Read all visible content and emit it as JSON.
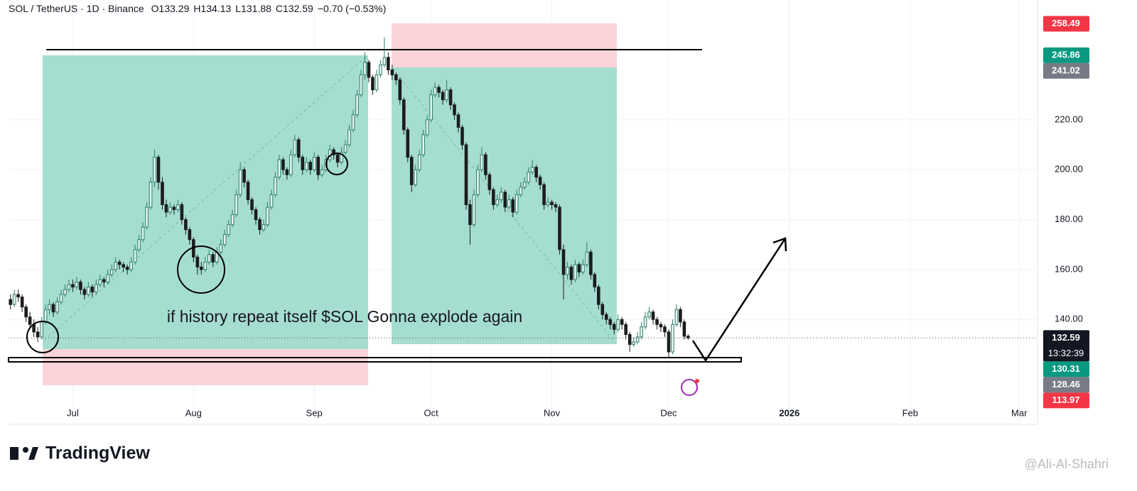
{
  "chart_data": {
    "type": "candlestick",
    "title": "SOL / TetherUS · 1D · Binance",
    "legend_values": [
      "O133.29",
      "H134.13",
      "L131.88",
      "C132.59",
      "−0.70 (−0.53%)"
    ],
    "annotation": "if history repeat itself $SOL Gonna explode again",
    "up_color": "#2e7d6b",
    "down_color": "#1c1c1c",
    "grid": true,
    "xlim": [
      -0.5,
      263.7
    ],
    "xticks": [
      {
        "value": 16,
        "label": "Jul"
      },
      {
        "value": 47,
        "label": "Aug"
      },
      {
        "value": 78,
        "label": "Sep"
      },
      {
        "value": 108,
        "label": "Oct"
      },
      {
        "value": 139,
        "label": "Nov"
      },
      {
        "value": 169,
        "label": "Dec"
      },
      {
        "value": 200,
        "label": "2026"
      },
      {
        "value": 231,
        "label": "Feb"
      },
      {
        "value": 259,
        "label": "Mar"
      }
    ],
    "ylim": [
      98,
      268
    ],
    "yticks": [
      {
        "value": 140,
        "label": "140.00"
      },
      {
        "value": 160,
        "label": "160.00"
      },
      {
        "value": 180,
        "label": "180.00"
      },
      {
        "value": 200,
        "label": "200.00"
      },
      {
        "value": 220,
        "label": "220.00"
      }
    ],
    "price_labels": [
      {
        "value": 258.49,
        "label": "258.49",
        "color": "#f23645"
      },
      {
        "value": 245.86,
        "label": "245.86",
        "color": "#089981"
      },
      {
        "value": 241.02,
        "label": "241.02",
        "color": "#787b86"
      },
      {
        "value": 132.59,
        "label": "132.59",
        "color": "#131722",
        "sub": "13:32:39"
      },
      {
        "value": 130.31,
        "label": "130.31",
        "color": "#089981"
      },
      {
        "value": 128.46,
        "label": "128.46",
        "color": "#787b86"
      },
      {
        "value": 113.97,
        "label": "113.97",
        "color": "#f23645"
      }
    ],
    "candles": [
      [
        148,
        150,
        144,
        146
      ],
      [
        146,
        152,
        145,
        150
      ],
      [
        150,
        152,
        147,
        149
      ],
      [
        149,
        150,
        143,
        145
      ],
      [
        145,
        146,
        139,
        141
      ],
      [
        141,
        143,
        136,
        138
      ],
      [
        138,
        140,
        133,
        135
      ],
      [
        135,
        137,
        131,
        133
      ],
      [
        133,
        141,
        132,
        139
      ],
      [
        139,
        146,
        138,
        144
      ],
      [
        144,
        148,
        142,
        146
      ],
      [
        146,
        147,
        141,
        143
      ],
      [
        143,
        149,
        142,
        147
      ],
      [
        147,
        152,
        146,
        150
      ],
      [
        150,
        154,
        149,
        152
      ],
      [
        152,
        156,
        151,
        154
      ],
      [
        154,
        156,
        151,
        153
      ],
      [
        153,
        157,
        152,
        155
      ],
      [
        155,
        156,
        150,
        152
      ],
      [
        152,
        153,
        148,
        150
      ],
      [
        150,
        155,
        149,
        153
      ],
      [
        153,
        154,
        149,
        151
      ],
      [
        151,
        156,
        150,
        154
      ],
      [
        154,
        158,
        153,
        156
      ],
      [
        156,
        157,
        153,
        155
      ],
      [
        155,
        160,
        154,
        158
      ],
      [
        158,
        162,
        157,
        160
      ],
      [
        160,
        165,
        159,
        163
      ],
      [
        163,
        164,
        160,
        162
      ],
      [
        162,
        163,
        159,
        161
      ],
      [
        161,
        162,
        158,
        160
      ],
      [
        160,
        165,
        159,
        163
      ],
      [
        163,
        170,
        162,
        168
      ],
      [
        168,
        174,
        167,
        172
      ],
      [
        172,
        179,
        171,
        177
      ],
      [
        177,
        187,
        176,
        185
      ],
      [
        185,
        197,
        184,
        195
      ],
      [
        195,
        208,
        193,
        205
      ],
      [
        205,
        206,
        192,
        195
      ],
      [
        195,
        197,
        184,
        186
      ],
      [
        186,
        188,
        181,
        183
      ],
      [
        183,
        187,
        182,
        185
      ],
      [
        185,
        186,
        182,
        184
      ],
      [
        184,
        188,
        183,
        186
      ],
      [
        186,
        187,
        178,
        180
      ],
      [
        180,
        181,
        174,
        176
      ],
      [
        176,
        177,
        170,
        172
      ],
      [
        172,
        173,
        163,
        165
      ],
      [
        165,
        166,
        158,
        161
      ],
      [
        161,
        163,
        158,
        160
      ],
      [
        160,
        165,
        159,
        163
      ],
      [
        163,
        168,
        162,
        166
      ],
      [
        166,
        167,
        161,
        163
      ],
      [
        163,
        169,
        162,
        167
      ],
      [
        167,
        172,
        166,
        170
      ],
      [
        170,
        176,
        169,
        174
      ],
      [
        174,
        180,
        173,
        178
      ],
      [
        178,
        184,
        177,
        182
      ],
      [
        182,
        192,
        181,
        190
      ],
      [
        190,
        203,
        189,
        200
      ],
      [
        200,
        201,
        193,
        195
      ],
      [
        195,
        196,
        186,
        188
      ],
      [
        188,
        189,
        182,
        184
      ],
      [
        184,
        185,
        178,
        180
      ],
      [
        180,
        181,
        174,
        176
      ],
      [
        176,
        180,
        175,
        178
      ],
      [
        178,
        187,
        177,
        185
      ],
      [
        185,
        192,
        184,
        190
      ],
      [
        190,
        199,
        189,
        197
      ],
      [
        197,
        206,
        196,
        204
      ],
      [
        204,
        205,
        198,
        200
      ],
      [
        200,
        201,
        196,
        198
      ],
      [
        198,
        208,
        197,
        206
      ],
      [
        206,
        214,
        205,
        212
      ],
      [
        212,
        213,
        203,
        205
      ],
      [
        205,
        206,
        198,
        200
      ],
      [
        200,
        205,
        199,
        203
      ],
      [
        203,
        204,
        198,
        200
      ],
      [
        200,
        207,
        199,
        205
      ],
      [
        205,
        206,
        196,
        198
      ],
      [
        198,
        202,
        197,
        200
      ],
      [
        200,
        206,
        199,
        204
      ],
      [
        204,
        210,
        203,
        208
      ],
      [
        208,
        209,
        204,
        206
      ],
      [
        206,
        207,
        201,
        203
      ],
      [
        203,
        209,
        202,
        207
      ],
      [
        207,
        212,
        206,
        210
      ],
      [
        210,
        218,
        209,
        216
      ],
      [
        216,
        224,
        215,
        222
      ],
      [
        222,
        232,
        221,
        230
      ],
      [
        230,
        240,
        229,
        238
      ],
      [
        238,
        247,
        236,
        243
      ],
      [
        243,
        244,
        235,
        237
      ],
      [
        237,
        238,
        230,
        232
      ],
      [
        232,
        240,
        231,
        238
      ],
      [
        238,
        244,
        237,
        242
      ],
      [
        242,
        253,
        241,
        245
      ],
      [
        245,
        247,
        238,
        240
      ],
      [
        240,
        242,
        236,
        238
      ],
      [
        238,
        239,
        234,
        236
      ],
      [
        236,
        237,
        226,
        228
      ],
      [
        228,
        229,
        214,
        216
      ],
      [
        216,
        217,
        203,
        205
      ],
      [
        205,
        206,
        191,
        194
      ],
      [
        194,
        202,
        193,
        200
      ],
      [
        200,
        208,
        199,
        206
      ],
      [
        206,
        216,
        205,
        214
      ],
      [
        214,
        222,
        213,
        220
      ],
      [
        220,
        232,
        219,
        230
      ],
      [
        230,
        235,
        229,
        233
      ],
      [
        233,
        234,
        229,
        231
      ],
      [
        231,
        232,
        226,
        228
      ],
      [
        228,
        236,
        227,
        232
      ],
      [
        232,
        233,
        224,
        226
      ],
      [
        226,
        227,
        220,
        222
      ],
      [
        222,
        223,
        215,
        217
      ],
      [
        217,
        218,
        208,
        210
      ],
      [
        210,
        211,
        184,
        186
      ],
      [
        186,
        188,
        170,
        178
      ],
      [
        178,
        192,
        177,
        190
      ],
      [
        190,
        202,
        189,
        200
      ],
      [
        200,
        209,
        199,
        206
      ],
      [
        206,
        207,
        196,
        198
      ],
      [
        198,
        199,
        190,
        192
      ],
      [
        192,
        193,
        184,
        186
      ],
      [
        186,
        190,
        185,
        188
      ],
      [
        188,
        193,
        187,
        191
      ],
      [
        191,
        192,
        183,
        185
      ],
      [
        185,
        190,
        184,
        188
      ],
      [
        188,
        189,
        181,
        183
      ],
      [
        183,
        192,
        182,
        190
      ],
      [
        190,
        195,
        189,
        193
      ],
      [
        193,
        197,
        192,
        195
      ],
      [
        195,
        201,
        194,
        199
      ],
      [
        199,
        204,
        198,
        201
      ],
      [
        201,
        202,
        195,
        197
      ],
      [
        197,
        198,
        192,
        194
      ],
      [
        194,
        195,
        184,
        186
      ],
      [
        186,
        189,
        185,
        187
      ],
      [
        187,
        188,
        184,
        186
      ],
      [
        186,
        187,
        183,
        185
      ],
      [
        185,
        186,
        166,
        168
      ],
      [
        168,
        170,
        148,
        158
      ],
      [
        158,
        163,
        156,
        161
      ],
      [
        161,
        162,
        154,
        156
      ],
      [
        156,
        164,
        155,
        162
      ],
      [
        162,
        163,
        157,
        159
      ],
      [
        159,
        164,
        158,
        162
      ],
      [
        162,
        171,
        161,
        167
      ],
      [
        167,
        168,
        156,
        158
      ],
      [
        158,
        159,
        151,
        153
      ],
      [
        153,
        154,
        144,
        146
      ],
      [
        146,
        147,
        140,
        142
      ],
      [
        142,
        143,
        138,
        140
      ],
      [
        140,
        141,
        136,
        138
      ],
      [
        138,
        139,
        134,
        136
      ],
      [
        136,
        142,
        135,
        140
      ],
      [
        140,
        141,
        136,
        138
      ],
      [
        138,
        139,
        132,
        134
      ],
      [
        134,
        135,
        127,
        130
      ],
      [
        130,
        133,
        129,
        131
      ],
      [
        131,
        135,
        130,
        133
      ],
      [
        133,
        139,
        132,
        137
      ],
      [
        137,
        143,
        136,
        141
      ],
      [
        141,
        145,
        140,
        143
      ],
      [
        143,
        144,
        138,
        140
      ],
      [
        140,
        141,
        136,
        138
      ],
      [
        138,
        139,
        135,
        137
      ],
      [
        137,
        138,
        133,
        135
      ],
      [
        135,
        136,
        125,
        127
      ],
      [
        127,
        140,
        126,
        138
      ],
      [
        138,
        146,
        137,
        144
      ],
      [
        144,
        145,
        137,
        139
      ],
      [
        139,
        140,
        132,
        133.29
      ],
      [
        133.29,
        134.13,
        131.88,
        132.59
      ]
    ]
  },
  "footer": {
    "brand": "TradingView",
    "watermark": "@Ali-Al-Shahri"
  }
}
